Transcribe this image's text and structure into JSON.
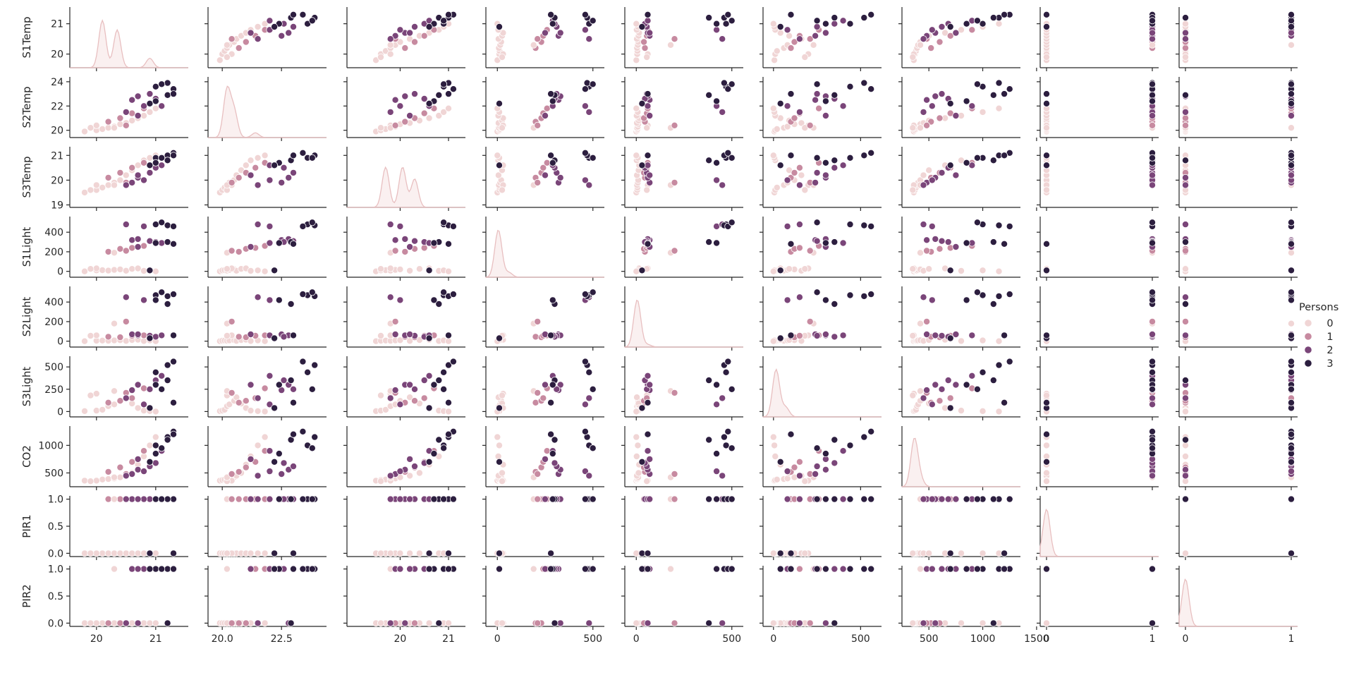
{
  "chart_data": {
    "type": "scatter",
    "variables": [
      "S1Temp",
      "S2Temp",
      "S3Temp",
      "S1Light",
      "S2Light",
      "S3Light",
      "CO2",
      "PIR1",
      "PIR2"
    ],
    "axes": {
      "S1Temp": {
        "range": [
          19.55,
          21.55
        ],
        "ticks": [
          20,
          21
        ]
      },
      "S2Temp": {
        "range": [
          19.4,
          24.4
        ],
        "ticks": [
          20,
          22,
          24
        ],
        "x_ticks": [
          20.0,
          22.5
        ],
        "x_tick_labels": [
          "20.0",
          "22.5"
        ]
      },
      "S3Temp": {
        "range": [
          18.9,
          21.35
        ],
        "ticks": [
          19,
          20,
          21
        ],
        "x_ticks": [
          20,
          21
        ]
      },
      "S1Light": {
        "range": [
          -60,
          560
        ],
        "ticks": [
          0,
          200,
          400
        ],
        "x_ticks": [
          0,
          500
        ]
      },
      "S2Light": {
        "range": [
          -60,
          560
        ],
        "ticks": [
          0,
          200,
          400
        ],
        "x_ticks": [
          0,
          500
        ]
      },
      "S3Light": {
        "range": [
          -60,
          620
        ],
        "ticks": [
          0,
          250,
          500
        ],
        "x_ticks": [
          0,
          500
        ]
      },
      "CO2": {
        "range": [
          250,
          1350
        ],
        "ticks": [
          500,
          1000
        ],
        "x_ticks": [
          500,
          1000,
          1500
        ]
      },
      "PIR1": {
        "range": [
          -0.06,
          1.06
        ],
        "ticks": [
          0.0,
          0.5,
          1.0
        ],
        "x_ticks": [
          0,
          1
        ],
        "tick_labels": [
          "0.0",
          "0.5",
          "1.0"
        ]
      },
      "PIR2": {
        "range": [
          -0.06,
          1.06
        ],
        "ticks": [
          0.0,
          0.5,
          1.0
        ],
        "x_ticks": [
          0,
          1
        ],
        "tick_labels": [
          "0.0",
          "0.5",
          "1.0"
        ]
      }
    },
    "hue": "Persons",
    "legend": {
      "title": "Persons",
      "placement": "right",
      "entries": [
        {
          "label": "0",
          "color": "#f0d5d5"
        },
        {
          "label": "1",
          "color": "#c78aa0"
        },
        {
          "label": "2",
          "color": "#7a4579"
        },
        {
          "label": "3",
          "color": "#2c1e3f"
        }
      ]
    },
    "diagonal": "kde",
    "kde_peaks": {
      "S1Temp": [
        [
          20.1,
          1.0
        ],
        [
          20.35,
          0.8
        ],
        [
          20.9,
          0.2
        ]
      ],
      "S2Temp": [
        [
          20.2,
          1.0
        ],
        [
          20.5,
          0.55
        ],
        [
          21.4,
          0.1
        ]
      ],
      "S3Temp": [
        [
          19.7,
          0.85
        ],
        [
          20.05,
          0.85
        ],
        [
          20.3,
          0.6
        ]
      ],
      "S1Light": [
        [
          5,
          1.0
        ],
        [
          60,
          0.1
        ]
      ],
      "S2Light": [
        [
          5,
          1.0
        ],
        [
          60,
          0.05
        ]
      ],
      "S3Light": [
        [
          15,
          1.0
        ],
        [
          70,
          0.2
        ]
      ],
      "CO2": [
        [
          365,
          1.0
        ],
        [
          420,
          0.15
        ]
      ],
      "PIR1": [
        [
          0,
          1.0
        ]
      ],
      "PIR2": [
        [
          0,
          1.0
        ]
      ]
    },
    "observations": [
      [
        19.8,
        19.9,
        19.5,
        0,
        0,
        5,
        360,
        0,
        0,
        0
      ],
      [
        20.0,
        20.0,
        19.6,
        10,
        5,
        10,
        370,
        0,
        0,
        0
      ],
      [
        20.1,
        20.1,
        19.7,
        12,
        6,
        20,
        380,
        0,
        0,
        0
      ],
      [
        20.2,
        20.2,
        19.8,
        8,
        4,
        60,
        390,
        0,
        0,
        0
      ],
      [
        20.3,
        20.3,
        19.9,
        15,
        8,
        80,
        400,
        0,
        0,
        0
      ],
      [
        20.4,
        20.5,
        20.0,
        20,
        10,
        120,
        420,
        0,
        0,
        0
      ],
      [
        20.5,
        20.6,
        20.2,
        6,
        3,
        160,
        450,
        0,
        0,
        0
      ],
      [
        20.6,
        20.8,
        20.4,
        25,
        12,
        90,
        500,
        0,
        0,
        0
      ],
      [
        20.7,
        21.0,
        20.6,
        30,
        15,
        40,
        650,
        0,
        0,
        0
      ],
      [
        20.8,
        21.2,
        20.8,
        5,
        2,
        10,
        800,
        0,
        0,
        0
      ],
      [
        20.9,
        21.5,
        20.9,
        10,
        8,
        5,
        1000,
        0,
        0,
        0
      ],
      [
        21.0,
        21.8,
        21.0,
        0,
        0,
        0,
        1150,
        0,
        0,
        0
      ],
      [
        20.0,
        20.4,
        19.8,
        30,
        60,
        200,
        360,
        0,
        0,
        0
      ],
      [
        19.9,
        20.2,
        19.6,
        25,
        55,
        180,
        350,
        0,
        0,
        0
      ],
      [
        20.2,
        20.7,
        20.1,
        200,
        45,
        100,
        520,
        1,
        0,
        1
      ],
      [
        20.4,
        21.0,
        20.3,
        230,
        40,
        120,
        600,
        1,
        0,
        1
      ],
      [
        20.6,
        21.4,
        20.5,
        240,
        55,
        150,
        700,
        1,
        1,
        1
      ],
      [
        20.8,
        21.8,
        20.7,
        260,
        60,
        260,
        900,
        1,
        1,
        1
      ],
      [
        20.3,
        20.2,
        19.8,
        190,
        180,
        230,
        420,
        1,
        1,
        0
      ],
      [
        20.5,
        20.4,
        19.9,
        210,
        200,
        210,
        480,
        1,
        0,
        1
      ],
      [
        20.6,
        22.5,
        19.9,
        320,
        70,
        240,
        480,
        1,
        1,
        2
      ],
      [
        20.7,
        22.8,
        20.1,
        330,
        60,
        300,
        560,
        1,
        0,
        2
      ],
      [
        20.9,
        23.0,
        20.3,
        310,
        55,
        250,
        620,
        1,
        1,
        2
      ],
      [
        21.0,
        22.6,
        20.5,
        300,
        45,
        350,
        680,
        1,
        1,
        2
      ],
      [
        20.8,
        22.0,
        20.0,
        460,
        420,
        80,
        530,
        1,
        1,
        2
      ],
      [
        20.5,
        21.5,
        19.8,
        480,
        450,
        150,
        450,
        1,
        0,
        2
      ],
      [
        21.1,
        22.0,
        20.6,
        290,
        60,
        400,
        900,
        1,
        1,
        2
      ],
      [
        20.7,
        21.2,
        20.2,
        250,
        70,
        300,
        750,
        1,
        1,
        2
      ],
      [
        21.0,
        23.6,
        20.9,
        480,
        470,
        440,
        1000,
        1,
        1,
        3
      ],
      [
        21.2,
        23.9,
        21.0,
        470,
        460,
        520,
        1150,
        1,
        1,
        3
      ],
      [
        21.3,
        23.4,
        21.1,
        460,
        480,
        560,
        1250,
        1,
        1,
        3
      ],
      [
        21.2,
        22.9,
        20.8,
        300,
        380,
        350,
        1100,
        1,
        0,
        3
      ],
      [
        21.0,
        22.4,
        20.7,
        290,
        420,
        300,
        850,
        1,
        1,
        3
      ],
      [
        21.1,
        23.8,
        20.9,
        500,
        500,
        250,
        950,
        1,
        1,
        3
      ],
      [
        20.9,
        22.2,
        20.6,
        10,
        30,
        40,
        700,
        0,
        1,
        3
      ],
      [
        21.3,
        23.0,
        21.0,
        280,
        60,
        100,
        1200,
        0,
        1,
        3
      ]
    ]
  }
}
